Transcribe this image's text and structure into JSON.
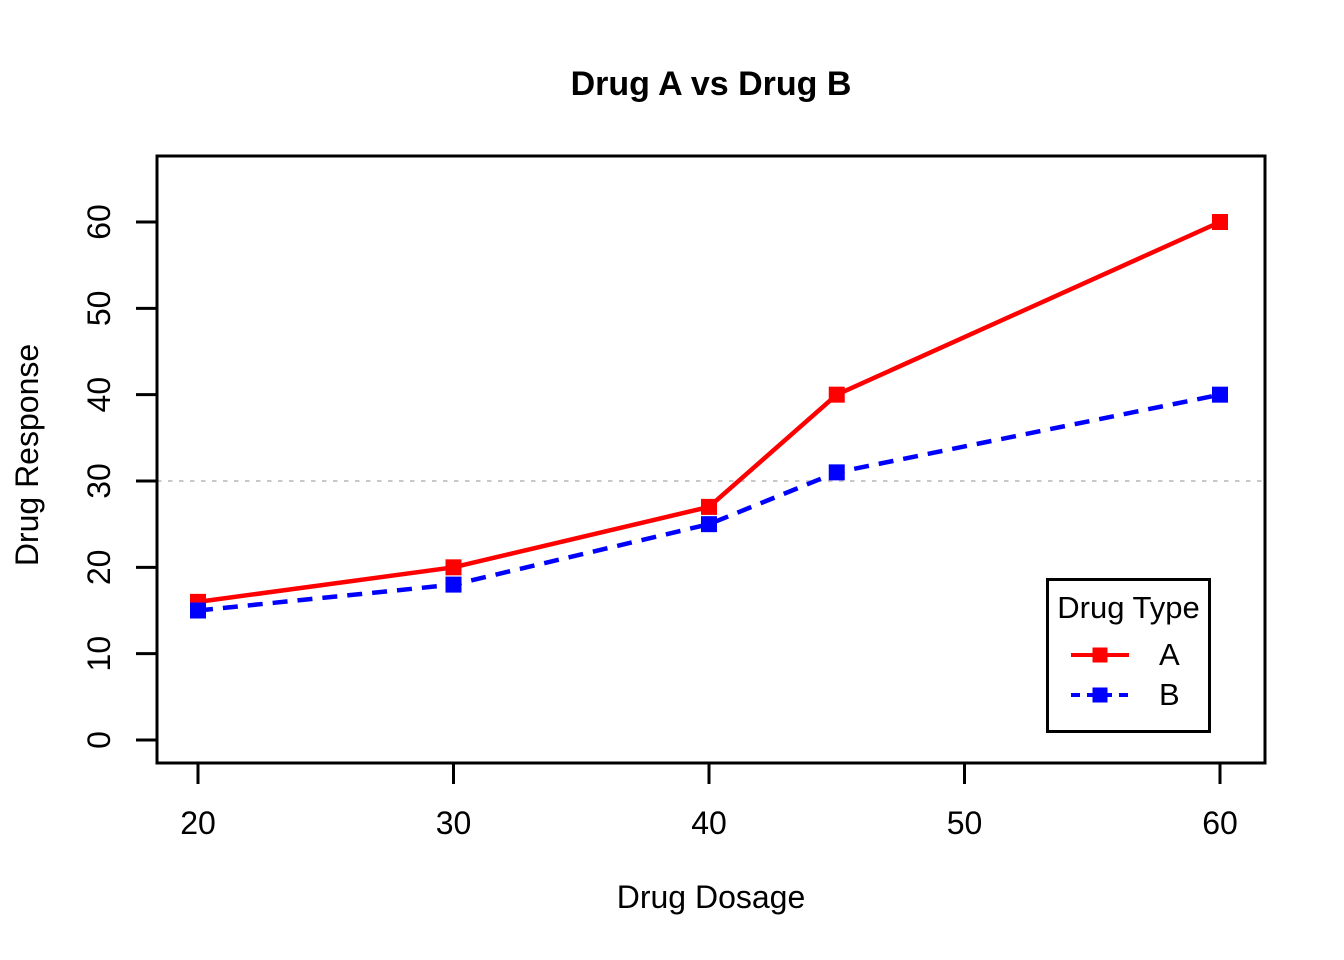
{
  "chart_data": {
    "type": "line",
    "title": "Drug A vs Drug B",
    "xlabel": "Drug Dosage",
    "ylabel": "Drug Response",
    "x": [
      20,
      30,
      40,
      45,
      60
    ],
    "series": [
      {
        "name": "A",
        "values": [
          16,
          20,
          27,
          40,
          60
        ],
        "color": "#ff0000",
        "line_style": "solid",
        "marker": "square"
      },
      {
        "name": "B",
        "values": [
          15,
          18,
          25,
          31,
          40
        ],
        "color": "#0000ff",
        "line_style": "dashed",
        "marker": "square"
      }
    ],
    "xticks": [
      20,
      30,
      40,
      50,
      60
    ],
    "yticks": [
      0,
      10,
      20,
      30,
      40,
      50,
      60
    ],
    "xlim": [
      18.4,
      61.6
    ],
    "ylim": [
      -2.7,
      62.5
    ],
    "grid": false,
    "reference_line": {
      "y": 30,
      "style": "dotted",
      "color": "#c8c8c8"
    },
    "axis_color": "#000000",
    "text_color": "#000000",
    "background_color": "#ffffff",
    "legend": {
      "title": "Drug Type",
      "position": "bottom-right",
      "entries": [
        "A",
        "B"
      ]
    }
  }
}
